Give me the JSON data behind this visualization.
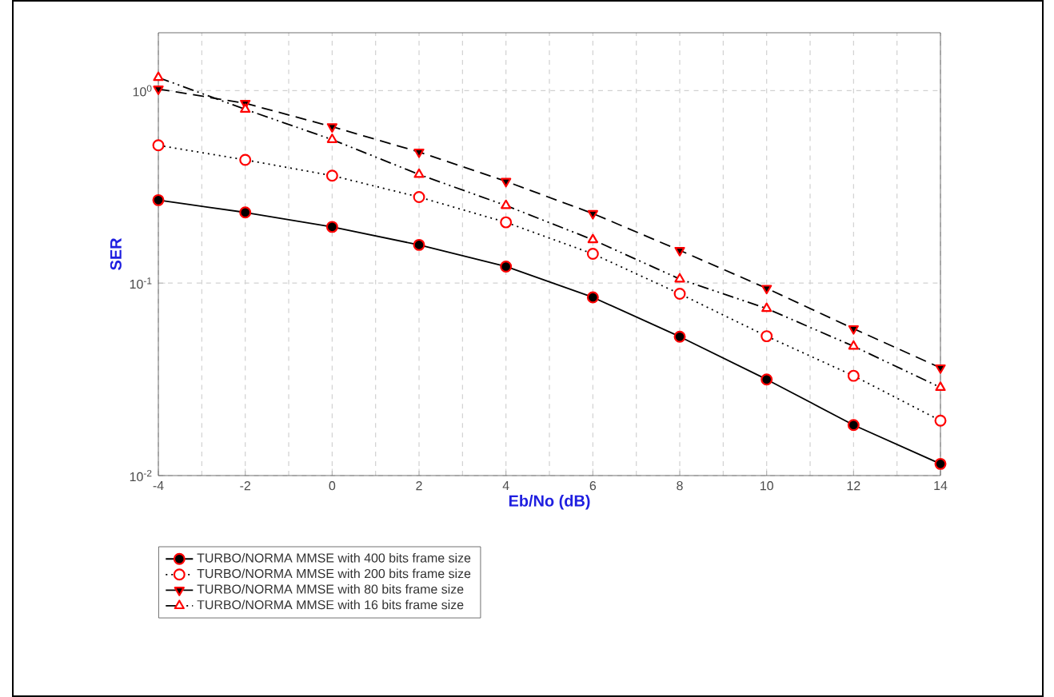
{
  "chart_data": {
    "type": "line",
    "xlabel": "Eb/No (dB)",
    "ylabel": "SER",
    "log": "y",
    "grid": true,
    "legend": "bottom",
    "x": [
      -4,
      -2,
      0,
      2,
      4,
      6,
      8,
      10,
      12,
      14
    ],
    "xlim": [
      -4,
      14
    ],
    "xticks": [
      -4,
      -2,
      0,
      2,
      4,
      6,
      8,
      10,
      12,
      14
    ],
    "ylim": [
      0.01,
      2
    ],
    "yticks": [
      {
        "value": 1,
        "label": "10$^{0}$"
      },
      {
        "value": 0.1,
        "label": "10$^{-1}$"
      },
      {
        "value": 0.01,
        "label": "10$^{-2}$"
      }
    ],
    "series": [
      {
        "name": "TURBO/NORMA MMSE with 400 bits frame size",
        "color": "#ff0000",
        "marker": "circle",
        "line_style": "solid",
        "values": [
          0.27,
          0.233,
          0.196,
          0.158,
          0.122,
          0.0844,
          0.0527,
          0.0316,
          0.0183,
          0.0115
        ]
      },
      {
        "name": "TURBO/NORMA MMSE with 200 bits frame size",
        "color": "#ff0000",
        "marker": "circle",
        "line_style": "dotted",
        "values": [
          0.52,
          0.437,
          0.362,
          0.28,
          0.207,
          0.142,
          0.088,
          0.053,
          0.033,
          0.0193
        ]
      },
      {
        "name": "TURBO/NORMA MMSE with 80 bits frame size",
        "color": "#ff0000",
        "marker": "triangle-down",
        "line_style": "dashed",
        "values": [
          1.02,
          0.86,
          0.65,
          0.48,
          0.338,
          0.23,
          0.148,
          0.094,
          0.058,
          0.0363
        ]
      },
      {
        "name": "TURBO/NORMA MMSE with 16 bits frame size",
        "color": "#ff0000",
        "marker": "triangle",
        "line_style": "dashdotdotted",
        "values": [
          1.17,
          0.8,
          0.557,
          0.367,
          0.253,
          0.168,
          0.105,
          0.0738,
          0.047,
          0.0287
        ]
      }
    ]
  }
}
